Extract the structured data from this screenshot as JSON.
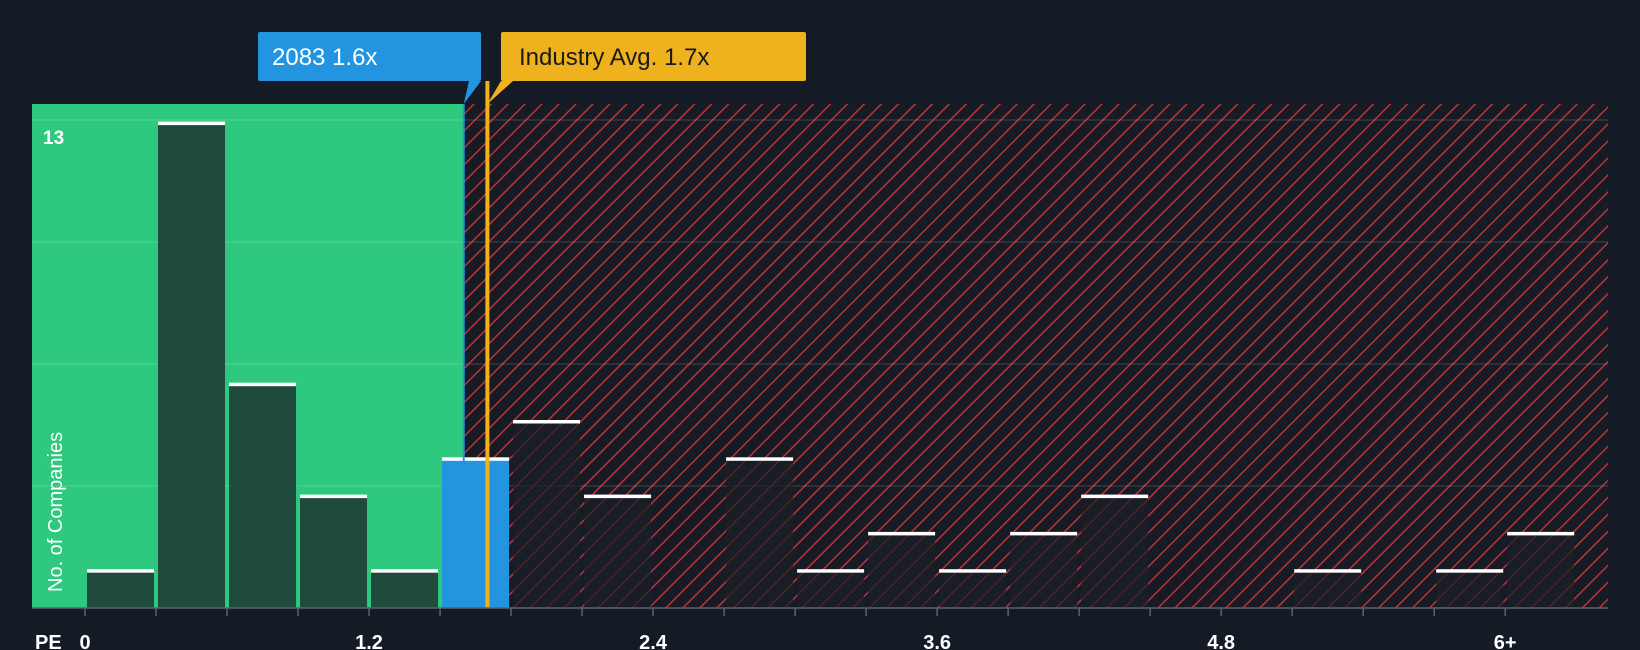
{
  "chart_data": {
    "type": "bar",
    "title": "",
    "xlabel": "PE",
    "ylabel": "No. of Companies",
    "xlim": [
      0,
      6.2
    ],
    "ylim": [
      0,
      13.5
    ],
    "x_ticks": [
      {
        "value": 0,
        "label": "0"
      },
      {
        "value": 1.2,
        "label": "1.2"
      },
      {
        "value": 2.4,
        "label": "2.4"
      },
      {
        "value": 3.6,
        "label": "3.6"
      },
      {
        "value": 4.8,
        "label": "4.8"
      },
      {
        "value": 6.0,
        "label": "6+"
      }
    ],
    "y_tick_label": {
      "value": 13,
      "label": "13"
    },
    "bin_width": 0.3,
    "bins": [
      {
        "start": 0.0,
        "count": 1
      },
      {
        "start": 0.3,
        "count": 13
      },
      {
        "start": 0.6,
        "count": 6
      },
      {
        "start": 0.9,
        "count": 3
      },
      {
        "start": 1.2,
        "count": 1
      },
      {
        "start": 1.5,
        "count": 4,
        "highlight": true
      },
      {
        "start": 1.8,
        "count": 5
      },
      {
        "start": 2.1,
        "count": 3
      },
      {
        "start": 2.4,
        "count": 0
      },
      {
        "start": 2.7,
        "count": 4
      },
      {
        "start": 3.0,
        "count": 1
      },
      {
        "start": 3.3,
        "count": 2
      },
      {
        "start": 3.6,
        "count": 1
      },
      {
        "start": 3.9,
        "count": 2
      },
      {
        "start": 4.2,
        "count": 3
      },
      {
        "start": 4.5,
        "count": 0
      },
      {
        "start": 4.8,
        "count": 0
      },
      {
        "start": 5.1,
        "count": 1
      },
      {
        "start": 5.4,
        "count": 0
      },
      {
        "start": 5.7,
        "count": 1
      },
      {
        "start": 6.0,
        "count": 2
      }
    ],
    "company": {
      "ticker": "2083",
      "value": 1.6,
      "label": "2083 1.6x"
    },
    "industry_avg": {
      "value": 1.7,
      "label": "Industry Avg. 1.7x"
    },
    "colors": {
      "background": "#151b24",
      "undervalued_zone": "#2ec97f",
      "overvalued_hatch": "#d9373a",
      "bar": "#1f4a3c",
      "bar_over": "#1a2027",
      "bar_cap": "#ffffff",
      "company": "#2394e0",
      "industry": "#efb21c"
    }
  }
}
